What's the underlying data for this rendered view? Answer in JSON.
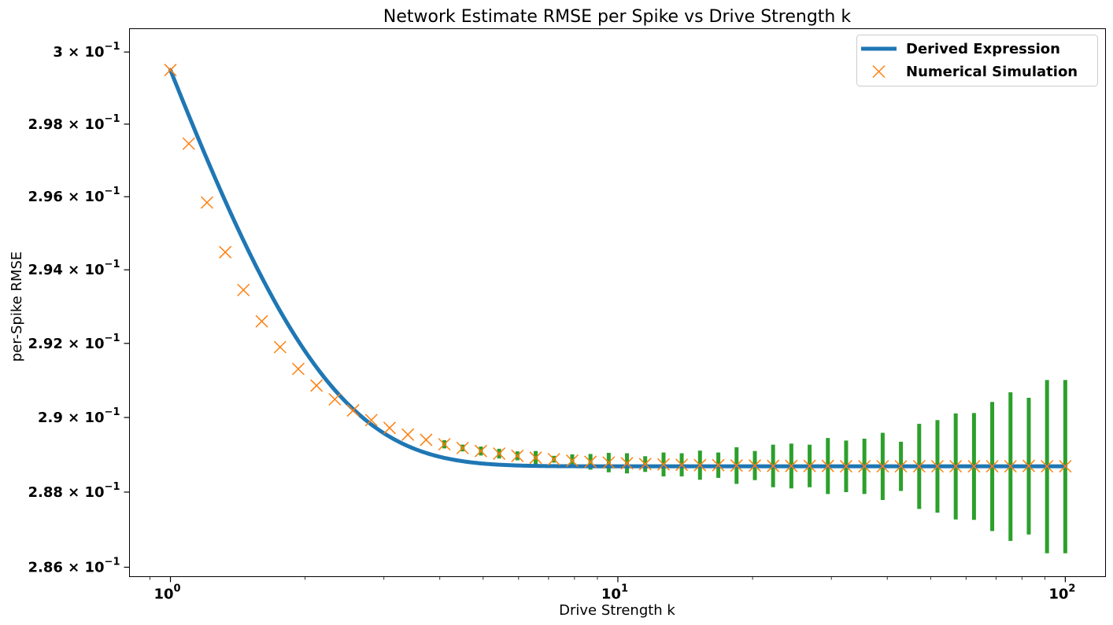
{
  "chart_data": {
    "type": "line",
    "title": "Network Estimate RMSE per Spike vs Drive Strength k",
    "xlabel": "Drive Strength k",
    "ylabel": "per-Spike RMSE",
    "x_scale": "log",
    "y_scale": "log",
    "xlim": [
      0.81,
      123
    ],
    "ylim": [
      0.28575,
      0.30065
    ],
    "x_ticks": [
      {
        "value": 1,
        "base": "10",
        "exp": "0"
      },
      {
        "value": 10,
        "base": "10",
        "exp": "1"
      },
      {
        "value": 100,
        "base": "10",
        "exp": "2"
      }
    ],
    "y_ticks": [
      {
        "value": 0.3,
        "mant": "3",
        "exp": "−1"
      },
      {
        "value": 0.298,
        "mant": "2.98",
        "exp": "−1"
      },
      {
        "value": 0.296,
        "mant": "2.96",
        "exp": "−1"
      },
      {
        "value": 0.294,
        "mant": "2.94",
        "exp": "−1"
      },
      {
        "value": 0.292,
        "mant": "2.92",
        "exp": "−1"
      },
      {
        "value": 0.29,
        "mant": "2.9",
        "exp": "−1"
      },
      {
        "value": 0.288,
        "mant": "2.88",
        "exp": "−1"
      },
      {
        "value": 0.286,
        "mant": "2.86",
        "exp": "−1"
      }
    ],
    "grid": false,
    "legend_position": "top-right",
    "series": [
      {
        "name": "Derived Expression",
        "style": "line",
        "color": "#1f77b4",
        "model": {
          "asymptote": 0.28869,
          "amplitude": 0.01081,
          "decay": 0.8
        }
      },
      {
        "name": "Numerical Simulation",
        "style": "x-markers",
        "color": "#ff7f0e",
        "x": [
          1.0,
          1.099,
          1.207,
          1.326,
          1.456,
          1.6,
          1.758,
          1.931,
          2.121,
          2.33,
          2.56,
          2.812,
          3.089,
          3.393,
          3.728,
          4.095,
          4.498,
          4.942,
          5.429,
          5.964,
          6.551,
          7.197,
          7.906,
          8.685,
          9.541,
          10.48,
          11.51,
          12.65,
          13.89,
          15.26,
          16.77,
          18.42,
          20.24,
          22.23,
          24.42,
          26.83,
          29.47,
          32.37,
          35.56,
          39.07,
          42.92,
          47.15,
          51.79,
          56.9,
          62.51,
          68.66,
          75.43,
          82.86,
          91.03,
          100.0
        ],
        "y": [
          0.2995,
          0.29746,
          0.29584,
          0.29448,
          0.29345,
          0.2926,
          0.2919,
          0.29131,
          0.29086,
          0.29049,
          0.29019,
          0.28993,
          0.28972,
          0.28954,
          0.2894,
          0.28928,
          0.28918,
          0.2891,
          0.28903,
          0.28897,
          0.28892,
          0.28888,
          0.28884,
          0.28881,
          0.28879,
          0.28877,
          0.28875,
          0.28874,
          0.28873,
          0.28872,
          0.28872,
          0.28871,
          0.28871,
          0.2887,
          0.2887,
          0.2887,
          0.2887,
          0.28869,
          0.28869,
          0.28869,
          0.28869,
          0.28869,
          0.28869,
          0.28869,
          0.28869,
          0.28869,
          0.28869,
          0.2887,
          0.28869,
          0.28869
        ]
      },
      {
        "name": "",
        "style": "error-bars",
        "color": "#2ca02c",
        "x": [
          4.095,
          4.498,
          4.942,
          5.429,
          5.964,
          6.551,
          7.197,
          7.906,
          8.685,
          9.541,
          10.48,
          11.51,
          12.65,
          13.89,
          15.26,
          16.77,
          18.42,
          20.24,
          22.23,
          24.42,
          26.83,
          29.47,
          32.37,
          35.56,
          39.07,
          42.92,
          47.15,
          51.79,
          56.9,
          62.51,
          68.66,
          75.43,
          82.86,
          91.03,
          100.0
        ],
        "err": [
          0.00011,
          9e-05,
          0.00012,
          0.00013,
          0.00012,
          0.00018,
          9e-05,
          0.00017,
          0.00021,
          0.00026,
          0.00027,
          0.00021,
          0.00032,
          0.00031,
          0.00039,
          0.00034,
          0.00049,
          0.00039,
          0.00057,
          0.0006,
          0.00057,
          0.00075,
          0.00069,
          0.00074,
          0.0009,
          0.00066,
          0.00114,
          0.00124,
          0.00142,
          0.00143,
          0.00173,
          0.00199,
          0.00183,
          0.00232,
          0.00232
        ]
      }
    ]
  }
}
